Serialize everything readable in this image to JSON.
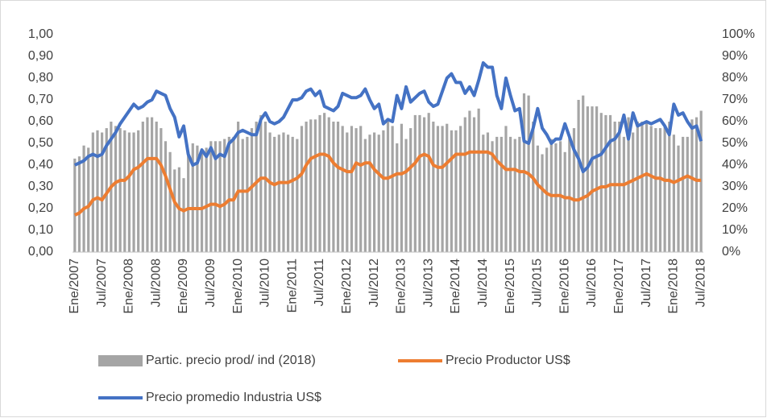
{
  "chart_data": {
    "type": "bar-line",
    "categories": [
      "Ene/2007",
      null,
      null,
      null,
      null,
      null,
      "Jul/2007",
      null,
      null,
      null,
      null,
      null,
      "Ene/2008",
      null,
      null,
      null,
      null,
      null,
      "Jul/2008",
      null,
      null,
      null,
      null,
      null,
      "Ene/2009",
      null,
      null,
      null,
      null,
      null,
      "Jul/2009",
      null,
      null,
      null,
      null,
      null,
      "Ene/2010",
      null,
      null,
      null,
      null,
      null,
      "Jul/2010",
      null,
      null,
      null,
      null,
      null,
      "Ene/2011",
      null,
      null,
      null,
      null,
      null,
      "Jul/2011",
      null,
      null,
      null,
      null,
      null,
      "Ene/2012",
      null,
      null,
      null,
      null,
      null,
      "Jul/2012",
      null,
      null,
      null,
      null,
      null,
      "Ene/2013",
      null,
      null,
      null,
      null,
      null,
      "Jul/2013",
      null,
      null,
      null,
      null,
      null,
      "Ene/2014",
      null,
      null,
      null,
      null,
      null,
      "Jul/2014",
      null,
      null,
      null,
      null,
      null,
      "Ene/2015",
      null,
      null,
      null,
      null,
      null,
      "Jul/2015",
      null,
      null,
      null,
      null,
      null,
      "Ene/2016",
      null,
      null,
      null,
      null,
      null,
      "Jul/2016",
      null,
      null,
      null,
      null,
      null,
      "Ene/2017",
      null,
      null,
      null,
      null,
      null,
      "Jul/2017",
      null,
      null,
      null,
      null,
      null,
      "Ene/2018",
      null,
      null,
      null,
      null,
      null,
      "Jul/2018"
    ],
    "series": [
      {
        "name": "Partic. precio prod/ ind (2018)",
        "type": "bar",
        "axis": "y2",
        "color": "#a5a5a5",
        "values": [
          43,
          44,
          49,
          48,
          55,
          56,
          55,
          57,
          60,
          58,
          57,
          56,
          55,
          55,
          56,
          60,
          62,
          62,
          60,
          57,
          51,
          46,
          38,
          39,
          34,
          46,
          50,
          49,
          46,
          48,
          51,
          51,
          51,
          52,
          53,
          53,
          60,
          52,
          53,
          57,
          60,
          63,
          60,
          55,
          53,
          54,
          55,
          54,
          53,
          52,
          58,
          60,
          61,
          61,
          63,
          64,
          62,
          60,
          60,
          58,
          55,
          58,
          57,
          58,
          52,
          54,
          55,
          54,
          56,
          60,
          58,
          50,
          59,
          52,
          57,
          63,
          63,
          62,
          64,
          60,
          58,
          58,
          59,
          56,
          56,
          58,
          62,
          65,
          62,
          66,
          54,
          55,
          51,
          53,
          53,
          58,
          53,
          52,
          53,
          73,
          72,
          60,
          49,
          45,
          48,
          52,
          50,
          51,
          46,
          53,
          57,
          70,
          72,
          67,
          67,
          67,
          64,
          63,
          63,
          60,
          60,
          53,
          62,
          55,
          60,
          60,
          60,
          58,
          57,
          57,
          58,
          60,
          54,
          49,
          53,
          53,
          61,
          62,
          65
        ]
      },
      {
        "name": "Precio Productor US$",
        "type": "line",
        "color": "#ed7d31",
        "values": [
          0.17,
          0.18,
          0.2,
          0.21,
          0.24,
          0.25,
          0.24,
          0.27,
          0.3,
          0.32,
          0.33,
          0.33,
          0.35,
          0.38,
          0.39,
          0.41,
          0.43,
          0.43,
          0.43,
          0.4,
          0.35,
          0.29,
          0.23,
          0.2,
          0.19,
          0.2,
          0.2,
          0.2,
          0.2,
          0.21,
          0.22,
          0.22,
          0.21,
          0.22,
          0.24,
          0.24,
          0.28,
          0.28,
          0.28,
          0.3,
          0.32,
          0.34,
          0.34,
          0.32,
          0.31,
          0.32,
          0.32,
          0.32,
          0.33,
          0.34,
          0.36,
          0.4,
          0.43,
          0.44,
          0.45,
          0.45,
          0.44,
          0.41,
          0.39,
          0.38,
          0.37,
          0.37,
          0.41,
          0.4,
          0.41,
          0.41,
          0.38,
          0.36,
          0.34,
          0.34,
          0.35,
          0.36,
          0.36,
          0.37,
          0.39,
          0.41,
          0.44,
          0.45,
          0.44,
          0.4,
          0.39,
          0.39,
          0.41,
          0.43,
          0.45,
          0.45,
          0.45,
          0.46,
          0.46,
          0.46,
          0.46,
          0.46,
          0.45,
          0.42,
          0.4,
          0.38,
          0.38,
          0.38,
          0.37,
          0.37,
          0.36,
          0.34,
          0.31,
          0.29,
          0.27,
          0.26,
          0.26,
          0.26,
          0.25,
          0.25,
          0.24,
          0.24,
          0.25,
          0.26,
          0.28,
          0.29,
          0.3,
          0.3,
          0.31,
          0.31,
          0.31,
          0.31,
          0.32,
          0.33,
          0.34,
          0.35,
          0.36,
          0.35,
          0.34,
          0.34,
          0.33,
          0.33,
          0.32,
          0.33,
          0.34,
          0.35,
          0.34,
          0.33,
          0.33
        ]
      },
      {
        "name": "Precio promedio Industria US$",
        "type": "line",
        "color": "#4472c4",
        "values": [
          0.4,
          0.41,
          0.42,
          0.44,
          0.45,
          0.44,
          0.45,
          0.49,
          0.52,
          0.55,
          0.59,
          0.62,
          0.65,
          0.68,
          0.66,
          0.67,
          0.69,
          0.7,
          0.74,
          0.73,
          0.72,
          0.66,
          0.62,
          0.53,
          0.58,
          0.45,
          0.4,
          0.41,
          0.47,
          0.44,
          0.48,
          0.43,
          0.45,
          0.44,
          0.5,
          0.52,
          0.55,
          0.56,
          0.55,
          0.54,
          0.54,
          0.61,
          0.64,
          0.6,
          0.59,
          0.6,
          0.62,
          0.66,
          0.7,
          0.7,
          0.71,
          0.74,
          0.75,
          0.72,
          0.74,
          0.67,
          0.66,
          0.65,
          0.67,
          0.73,
          0.72,
          0.71,
          0.71,
          0.72,
          0.75,
          0.7,
          0.66,
          0.68,
          0.59,
          0.61,
          0.6,
          0.72,
          0.66,
          0.76,
          0.69,
          0.71,
          0.73,
          0.74,
          0.69,
          0.67,
          0.68,
          0.74,
          0.8,
          0.82,
          0.78,
          0.78,
          0.73,
          0.76,
          0.72,
          0.79,
          0.87,
          0.85,
          0.85,
          0.72,
          0.66,
          0.8,
          0.72,
          0.65,
          0.66,
          0.51,
          0.5,
          0.57,
          0.66,
          0.57,
          0.54,
          0.5,
          0.52,
          0.52,
          0.59,
          0.53,
          0.47,
          0.43,
          0.37,
          0.39,
          0.43,
          0.44,
          0.45,
          0.48,
          0.51,
          0.52,
          0.55,
          0.63,
          0.52,
          0.64,
          0.58,
          0.59,
          0.6,
          0.59,
          0.6,
          0.61,
          0.58,
          0.54,
          0.68,
          0.63,
          0.64,
          0.6,
          0.57,
          0.58,
          0.51
        ]
      }
    ],
    "ylim": [
      0,
      1
    ],
    "yticks": [
      {
        "value": 0,
        "label": "0,00"
      },
      {
        "value": 0.1,
        "label": "0,10"
      },
      {
        "value": 0.2,
        "label": "0,20"
      },
      {
        "value": 0.3,
        "label": "0,30"
      },
      {
        "value": 0.4,
        "label": "0,40"
      },
      {
        "value": 0.5,
        "label": "0,50"
      },
      {
        "value": 0.6,
        "label": "0,60"
      },
      {
        "value": 0.7,
        "label": "0,70"
      },
      {
        "value": 0.8,
        "label": "0,80"
      },
      {
        "value": 0.9,
        "label": "0,90"
      },
      {
        "value": 1,
        "label": "1,00"
      }
    ],
    "y2lim": [
      0,
      100
    ],
    "y2ticks": [
      {
        "value": 0,
        "label": "0%"
      },
      {
        "value": 10,
        "label": "10%"
      },
      {
        "value": 20,
        "label": "20%"
      },
      {
        "value": 30,
        "label": "30%"
      },
      {
        "value": 40,
        "label": "40%"
      },
      {
        "value": 50,
        "label": "50%"
      },
      {
        "value": 60,
        "label": "60%"
      },
      {
        "value": 70,
        "label": "70%"
      },
      {
        "value": 80,
        "label": "80%"
      },
      {
        "value": 90,
        "label": "90%"
      },
      {
        "value": 100,
        "label": "100%"
      }
    ],
    "legend": "bottom",
    "grid": false
  }
}
